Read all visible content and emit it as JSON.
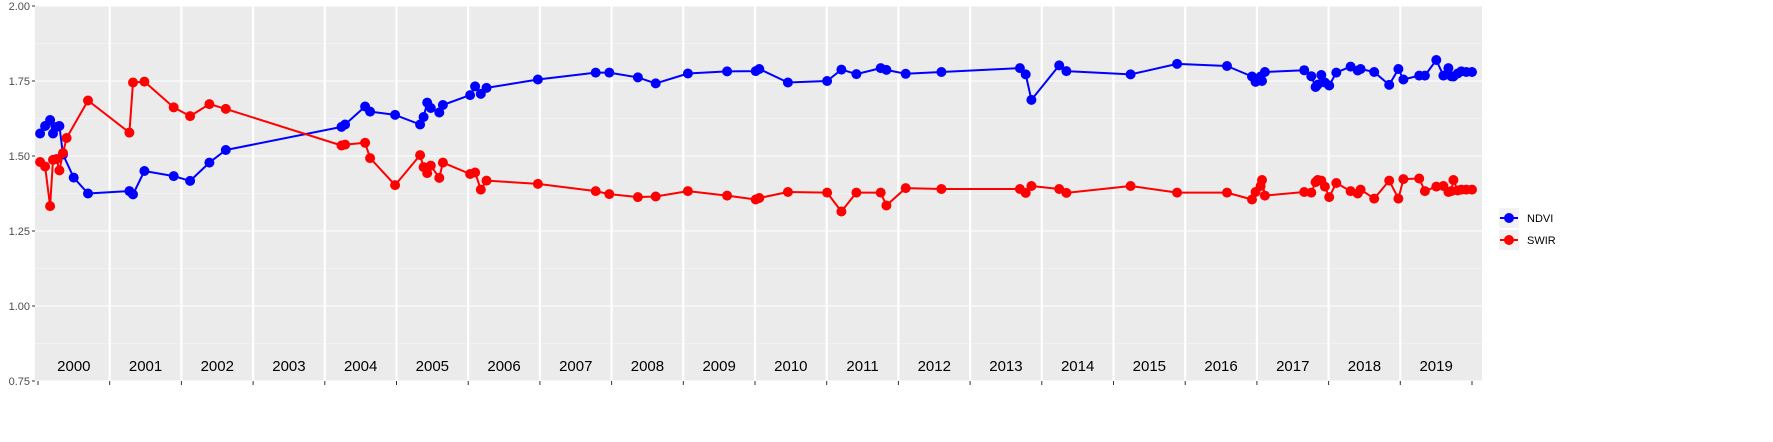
{
  "chart_data": {
    "type": "line",
    "title": "",
    "xlabel": "",
    "ylabel": "",
    "xlim": [
      1999.6,
      2019.68
    ],
    "ylim": [
      0.75,
      2.0
    ],
    "y_ticks": [
      0.75,
      1.0,
      1.25,
      1.5,
      1.75,
      2.0
    ],
    "y_tick_labels": [
      "0.75",
      "1.00",
      "1.25",
      "1.50",
      "1.75",
      "2.00"
    ],
    "facets": [
      "2000",
      "2001",
      "2002",
      "2003",
      "2004",
      "2005",
      "2006",
      "2007",
      "2008",
      "2009",
      "2010",
      "2011",
      "2012",
      "2013",
      "2014",
      "2015",
      "2016",
      "2017",
      "2018",
      "2019"
    ],
    "grid": true,
    "legend_position": "right",
    "colors": {
      "NDVI": "#0000ff",
      "SWIR": "#ff0000",
      "panel_bg": "#ebebeb",
      "grid": "#ffffff"
    },
    "series": [
      {
        "name": "NDVI",
        "x": [
          1999.63,
          1999.7,
          1999.77,
          1999.81,
          1999.86,
          1999.9,
          1999.95,
          2000.1,
          2000.3,
          2000.88,
          2000.93,
          2001.09,
          2001.5,
          2001.73,
          2002.0,
          2002.23,
          2003.85,
          2003.9,
          2004.18,
          2004.25,
          2004.6,
          2004.95,
          2005.0,
          2005.05,
          2005.1,
          2005.22,
          2005.27,
          2005.65,
          2005.72,
          2005.8,
          2005.88,
          2006.6,
          2007.41,
          2007.6,
          2008.0,
          2008.25,
          2008.7,
          2009.25,
          2009.65,
          2009.7,
          2010.1,
          2010.65,
          2010.85,
          2011.06,
          2011.4,
          2011.48,
          2011.75,
          2012.25,
          2013.35,
          2013.43,
          2013.51,
          2013.9,
          2014.0,
          2014.9,
          2015.55,
          2016.25,
          2016.6,
          2016.65,
          2016.72,
          2016.74,
          2016.78,
          2017.33,
          2017.43,
          2017.49,
          2017.52,
          2017.57,
          2017.62,
          2017.68,
          2017.78,
          2017.98,
          2018.08,
          2018.12,
          2018.31,
          2018.52,
          2018.65,
          2018.72,
          2018.94,
          2019.02,
          2019.18,
          2019.28,
          2019.35,
          2019.39,
          2019.42,
          2019.48,
          2019.53,
          2019.6,
          2019.68
        ],
        "values": [
          1.575,
          1.6,
          1.62,
          1.575,
          1.597,
          1.6,
          1.505,
          1.428,
          1.375,
          1.383,
          1.372,
          1.45,
          1.433,
          1.417,
          1.478,
          1.52,
          1.597,
          1.605,
          1.665,
          1.648,
          1.637,
          1.605,
          1.63,
          1.678,
          1.66,
          1.645,
          1.67,
          1.703,
          1.732,
          1.707,
          1.727,
          1.755,
          1.778,
          1.778,
          1.762,
          1.742,
          1.775,
          1.782,
          1.783,
          1.79,
          1.745,
          1.75,
          1.788,
          1.773,
          1.793,
          1.787,
          1.774,
          1.78,
          1.793,
          1.772,
          1.687,
          1.802,
          1.783,
          1.772,
          1.807,
          1.8,
          1.765,
          1.747,
          1.765,
          1.75,
          1.78,
          1.786,
          1.766,
          1.73,
          1.738,
          1.77,
          1.745,
          1.735,
          1.778,
          1.798,
          1.785,
          1.79,
          1.78,
          1.737,
          1.79,
          1.755,
          1.768,
          1.768,
          1.82,
          1.768,
          1.793,
          1.766,
          1.765,
          1.775,
          1.782,
          1.78,
          1.78
        ]
      },
      {
        "name": "SWIR",
        "x": [
          1999.63,
          1999.7,
          1999.77,
          1999.81,
          1999.86,
          1999.9,
          1999.95,
          2000.0,
          2000.3,
          2000.88,
          2000.93,
          2001.09,
          2001.5,
          2001.73,
          2002.0,
          2002.23,
          2003.85,
          2003.9,
          2004.18,
          2004.25,
          2004.6,
          2004.95,
          2005.0,
          2005.05,
          2005.1,
          2005.22,
          2005.27,
          2005.65,
          2005.72,
          2005.8,
          2005.88,
          2006.6,
          2007.41,
          2007.6,
          2008.0,
          2008.25,
          2008.7,
          2009.25,
          2009.65,
          2009.7,
          2010.1,
          2010.65,
          2010.85,
          2011.06,
          2011.4,
          2011.48,
          2011.75,
          2012.25,
          2013.35,
          2013.43,
          2013.51,
          2013.9,
          2014.0,
          2014.9,
          2015.55,
          2016.25,
          2016.6,
          2016.65,
          2016.72,
          2016.74,
          2016.78,
          2017.33,
          2017.43,
          2017.49,
          2017.52,
          2017.57,
          2017.62,
          2017.68,
          2017.78,
          2017.98,
          2018.08,
          2018.12,
          2018.31,
          2018.52,
          2018.65,
          2018.72,
          2018.94,
          2019.02,
          2019.18,
          2019.28,
          2019.35,
          2019.39,
          2019.42,
          2019.48,
          2019.53,
          2019.6,
          2019.68
        ],
        "values": [
          1.48,
          1.465,
          1.333,
          1.487,
          1.49,
          1.452,
          1.51,
          1.56,
          1.685,
          1.578,
          1.745,
          1.748,
          1.662,
          1.633,
          1.673,
          1.657,
          1.535,
          1.538,
          1.544,
          1.493,
          1.403,
          1.503,
          1.463,
          1.443,
          1.468,
          1.427,
          1.478,
          1.44,
          1.445,
          1.388,
          1.418,
          1.407,
          1.383,
          1.373,
          1.363,
          1.365,
          1.383,
          1.368,
          1.355,
          1.36,
          1.38,
          1.378,
          1.315,
          1.378,
          1.378,
          1.335,
          1.393,
          1.39,
          1.39,
          1.377,
          1.4,
          1.39,
          1.377,
          1.4,
          1.378,
          1.378,
          1.355,
          1.38,
          1.4,
          1.42,
          1.368,
          1.38,
          1.378,
          1.413,
          1.42,
          1.418,
          1.398,
          1.363,
          1.41,
          1.383,
          1.375,
          1.388,
          1.358,
          1.418,
          1.358,
          1.423,
          1.425,
          1.383,
          1.398,
          1.4,
          1.38,
          1.383,
          1.42,
          1.385,
          1.388,
          1.388,
          1.388
        ]
      }
    ]
  }
}
